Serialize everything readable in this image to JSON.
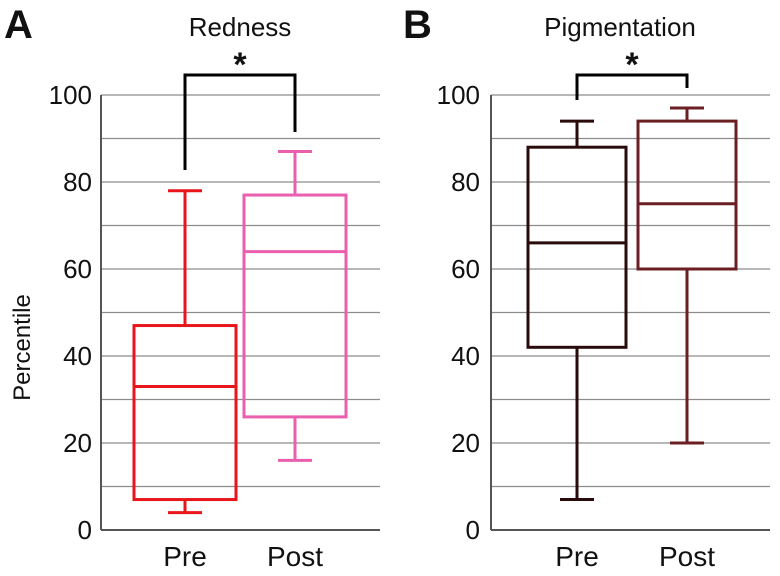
{
  "chart_data": [
    {
      "panel": "A",
      "type": "boxplot",
      "title": "Redness",
      "ylabel": "Percentile",
      "xlabel": "",
      "ylim": [
        0,
        100
      ],
      "yticks": [
        0,
        20,
        40,
        60,
        80,
        100
      ],
      "grid": true,
      "categories": [
        "Pre",
        "Post"
      ],
      "boxes": [
        {
          "name": "Pre",
          "color": "#e8151b",
          "min": 4,
          "q1": 7,
          "median": 33,
          "q3": 47,
          "max": 78
        },
        {
          "name": "Post",
          "color": "#ea5fae",
          "min": 16,
          "q1": 26,
          "median": 64,
          "q3": 77,
          "max": 87
        }
      ],
      "significance": {
        "label": "*",
        "between": [
          "Pre",
          "Post"
        ]
      }
    },
    {
      "panel": "B",
      "type": "boxplot",
      "title": "Pigmentation",
      "ylabel": "",
      "xlabel": "",
      "ylim": [
        0,
        100
      ],
      "yticks": [
        0,
        20,
        40,
        60,
        80,
        100
      ],
      "grid": true,
      "categories": [
        "Pre",
        "Post"
      ],
      "boxes": [
        {
          "name": "Pre",
          "color": "#2a0b0b",
          "min": 7,
          "q1": 42,
          "median": 66,
          "q3": 88,
          "max": 94
        },
        {
          "name": "Post",
          "color": "#6b1f23",
          "min": 20,
          "q1": 60,
          "median": 75,
          "q3": 94,
          "max": 97
        }
      ],
      "significance": {
        "label": "*",
        "between": [
          "Pre",
          "Post"
        ]
      }
    }
  ]
}
